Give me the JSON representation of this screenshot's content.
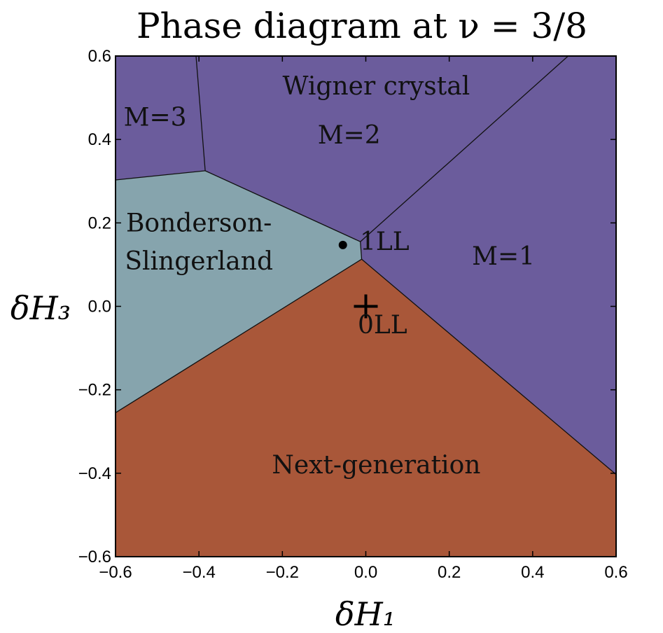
{
  "chart_data": {
    "type": "phase-diagram",
    "title": "Phase diagram at ν = 3/8",
    "xlabel": "δH₁",
    "ylabel": "δH₃",
    "xlim": [
      -0.6,
      0.6
    ],
    "ylim": [
      -0.6,
      0.6
    ],
    "xticks": [
      -0.6,
      -0.4,
      -0.2,
      0.0,
      0.2,
      0.4,
      0.6
    ],
    "yticks": [
      -0.6,
      -0.4,
      -0.2,
      0.0,
      0.2,
      0.4,
      0.6
    ],
    "xtick_labels": [
      "−0.6",
      "−0.4",
      "−0.2",
      "0.0",
      "0.2",
      "0.4",
      "0.6"
    ],
    "ytick_labels": [
      "−0.6",
      "−0.4",
      "−0.2",
      "0.0",
      "0.2",
      "0.4",
      "0.6"
    ],
    "colors": {
      "wigner": "#6b5c9c",
      "bonderson": "#86a4ad",
      "nextgen": "#a95739",
      "boundary": "#111111"
    },
    "regions": [
      {
        "name": "M=3",
        "color_key": "wigner",
        "points": [
          [
            -0.6,
            0.6
          ],
          [
            -0.407,
            0.6
          ],
          [
            -0.385,
            0.325
          ],
          [
            -0.6,
            0.303
          ]
        ]
      },
      {
        "name": "M=2",
        "color_key": "wigner",
        "points": [
          [
            -0.407,
            0.6
          ],
          [
            0.485,
            0.6
          ],
          [
            -0.013,
            0.155
          ],
          [
            -0.385,
            0.325
          ]
        ]
      },
      {
        "name": "M=1",
        "color_key": "wigner",
        "points": [
          [
            0.485,
            0.6
          ],
          [
            0.6,
            0.6
          ],
          [
            0.6,
            -0.403
          ],
          [
            -0.01,
            0.113
          ],
          [
            -0.013,
            0.155
          ]
        ]
      },
      {
        "name": "Bonderson-Slingerland",
        "color_key": "bonderson",
        "points": [
          [
            -0.6,
            0.303
          ],
          [
            -0.385,
            0.325
          ],
          [
            -0.013,
            0.155
          ],
          [
            -0.01,
            0.113
          ],
          [
            -0.6,
            -0.255
          ]
        ]
      },
      {
        "name": "Next-generation",
        "color_key": "nextgen",
        "points": [
          [
            -0.6,
            -0.255
          ],
          [
            -0.01,
            0.113
          ],
          [
            0.6,
            -0.403
          ],
          [
            0.6,
            -0.6
          ],
          [
            -0.6,
            -0.6
          ]
        ]
      }
    ],
    "boundaries": [
      [
        [
          -0.407,
          0.6
        ],
        [
          -0.385,
          0.325
        ]
      ],
      [
        [
          -0.6,
          0.303
        ],
        [
          -0.385,
          0.325
        ]
      ],
      [
        [
          -0.385,
          0.325
        ],
        [
          -0.013,
          0.155
        ]
      ],
      [
        [
          -0.013,
          0.155
        ],
        [
          0.485,
          0.6
        ]
      ],
      [
        [
          -0.013,
          0.155
        ],
        [
          -0.01,
          0.113
        ]
      ],
      [
        [
          -0.01,
          0.113
        ],
        [
          0.6,
          -0.403
        ]
      ],
      [
        [
          -0.01,
          0.113
        ],
        [
          -0.6,
          -0.255
        ]
      ]
    ],
    "labels": [
      {
        "text": "M=3",
        "x": -0.505,
        "y": 0.433
      },
      {
        "text": "Wigner crystal",
        "x": 0.025,
        "y": 0.508
      },
      {
        "text": "M=2",
        "x": -0.04,
        "y": 0.39
      },
      {
        "text": "Bonderson-",
        "x": -0.4,
        "y": 0.18
      },
      {
        "text": "Slingerland",
        "x": -0.4,
        "y": 0.088
      },
      {
        "text": "M=1",
        "x": 0.33,
        "y": 0.1
      },
      {
        "text": "Next-generation",
        "x": 0.025,
        "y": -0.4
      }
    ],
    "markers": [
      {
        "label": "1LL",
        "shape": "dot",
        "x": -0.055,
        "y": 0.147,
        "label_x": 0.045,
        "label_y": 0.135
      },
      {
        "label": "0LL",
        "shape": "plus",
        "x": 0.0,
        "y": 0.0,
        "label_x": 0.04,
        "label_y": -0.065
      }
    ]
  }
}
